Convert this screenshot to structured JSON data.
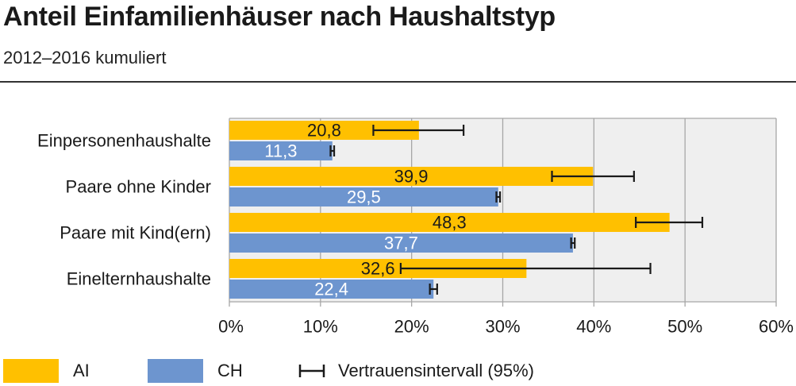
{
  "title": "Anteil Einfamilienhäuser nach Haushaltstyp",
  "subtitle": "2012–2016 kumuliert",
  "colors": {
    "ai": "#FFC000",
    "ch": "#6D95CF",
    "grid": "#a6a6a6",
    "plot_bg": "#efefef"
  },
  "legend": {
    "ai": "AI",
    "ch": "CH",
    "ci": "Vertrauensintervall (95%)"
  },
  "chart_data": {
    "type": "bar",
    "orientation": "horizontal",
    "categories": [
      "Einpersonenhaushalte",
      "Paare ohne Kinder",
      "Paare mit Kind(ern)",
      "Einelternhaushalte"
    ],
    "series": [
      {
        "name": "AI",
        "values": [
          20.8,
          39.9,
          48.3,
          32.6
        ],
        "labels": [
          "20,8",
          "39,9",
          "48,3",
          "32,6"
        ],
        "ci": [
          [
            15.8,
            25.7
          ],
          [
            35.4,
            44.4
          ],
          [
            44.6,
            51.9
          ],
          [
            18.8,
            46.2
          ]
        ]
      },
      {
        "name": "CH",
        "values": [
          11.3,
          29.5,
          37.7,
          22.4
        ],
        "labels": [
          "11,3",
          "29,5",
          "37,7",
          "22,4"
        ],
        "ci": [
          [
            11.1,
            11.5
          ],
          [
            29.3,
            29.7
          ],
          [
            37.5,
            37.9
          ],
          [
            22.0,
            22.8
          ]
        ]
      }
    ],
    "xlim": [
      0,
      60
    ],
    "xticks": [
      "0%",
      "10%",
      "20%",
      "30%",
      "40%",
      "50%",
      "60%"
    ],
    "grid": true,
    "legend_position": "bottom"
  }
}
